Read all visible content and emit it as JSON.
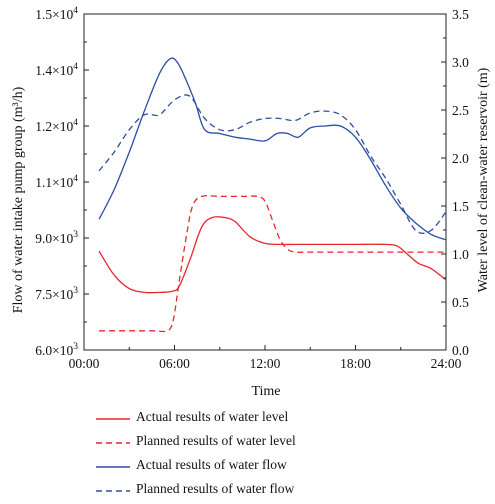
{
  "chart_data": {
    "type": "line",
    "xlabel": "Time",
    "ylabel_left": "Flow of water intake pump group (m³/h)",
    "ylabel_right": "Water level of clean-water reservoir (m)",
    "xlim": [
      0,
      24
    ],
    "ylim_left": [
      6000,
      15000
    ],
    "ylim_right": [
      0,
      3.5
    ],
    "x_ticks": [
      0,
      6,
      12,
      18,
      24
    ],
    "x_tick_labels": [
      "00:00",
      "06:00",
      "12:00",
      "18:00",
      "24:00"
    ],
    "y_left_ticks": [
      6000,
      7500,
      9000,
      10500,
      12000,
      13500,
      15000
    ],
    "y_left_tick_labels": [
      {
        "mantissa": "6.0×10",
        "exp": "3"
      },
      {
        "mantissa": "7.5×10",
        "exp": "3"
      },
      {
        "mantissa": "9.0×10",
        "exp": "3"
      },
      {
        "mantissa": "1.1×10",
        "exp": "4"
      },
      {
        "mantissa": "1.2×10",
        "exp": "4"
      },
      {
        "mantissa": "1.4×10",
        "exp": "4"
      },
      {
        "mantissa": "1.5×10",
        "exp": "4"
      }
    ],
    "y_right_ticks": [
      0,
      0.5,
      1.0,
      1.5,
      2.0,
      2.5,
      3.0,
      3.5
    ],
    "y_right_tick_labels": [
      "0.0",
      "0.5",
      "1.0",
      "1.5",
      "2.0",
      "2.5",
      "3.0",
      "3.5"
    ],
    "grid": false,
    "legend_position": "below",
    "series": [
      {
        "name": "Actual results of water level",
        "axis": "right",
        "color": "#e8262f",
        "dash": false,
        "x": [
          1,
          2,
          3,
          4,
          5,
          5.8,
          6.3,
          7,
          7.8,
          8.5,
          9.3,
          10,
          11,
          12,
          13,
          14,
          16,
          18,
          20,
          20.8,
          21.5,
          22.2,
          23,
          24
        ],
        "y": [
          1.03,
          0.78,
          0.64,
          0.6,
          0.6,
          0.61,
          0.66,
          0.93,
          1.28,
          1.38,
          1.38,
          1.34,
          1.18,
          1.11,
          1.1,
          1.1,
          1.1,
          1.1,
          1.1,
          1.08,
          0.99,
          0.9,
          0.85,
          0.73
        ]
      },
      {
        "name": "Planned results of water level",
        "axis": "right",
        "color": "#e8262f",
        "dash": true,
        "x": [
          1,
          3,
          4.5,
          5.5,
          5.9,
          6.3,
          6.8,
          7.2,
          7.8,
          9,
          10.5,
          11.5,
          12,
          12.5,
          13,
          13.5,
          14,
          15,
          18,
          21,
          24
        ],
        "y": [
          0.2,
          0.2,
          0.2,
          0.2,
          0.3,
          0.7,
          1.2,
          1.5,
          1.6,
          1.6,
          1.6,
          1.6,
          1.55,
          1.35,
          1.15,
          1.05,
          1.02,
          1.02,
          1.02,
          1.02,
          1.02
        ]
      },
      {
        "name": "Actual results of water flow",
        "axis": "left",
        "color": "#2b4ea3",
        "dash": false,
        "x": [
          1,
          2,
          3,
          4,
          5,
          5.7,
          6.2,
          6.8,
          7.4,
          8,
          9,
          10,
          11,
          12,
          12.8,
          13.5,
          14.2,
          15,
          16,
          17,
          18,
          19,
          20,
          21,
          22,
          23,
          24
        ],
        "y": [
          9500,
          10300,
          11300,
          12400,
          13400,
          13800,
          13700,
          13200,
          12600,
          11900,
          11800,
          11700,
          11650,
          11600,
          11800,
          11800,
          11700,
          11950,
          12000,
          12000,
          11700,
          11100,
          10400,
          9800,
          9400,
          9100,
          8950
        ]
      },
      {
        "name": "Planned results of water flow",
        "axis": "left",
        "color": "#2b4ea3",
        "dash": true,
        "x": [
          1,
          2,
          3,
          4,
          5,
          6,
          7,
          8,
          9,
          10,
          11,
          12,
          13,
          14,
          15,
          16,
          17,
          18,
          19,
          20,
          21,
          22,
          23,
          24
        ],
        "y": [
          10800,
          11300,
          11900,
          12300,
          12300,
          12700,
          12800,
          12200,
          11900,
          11900,
          12100,
          12200,
          12200,
          12150,
          12350,
          12400,
          12300,
          11900,
          11200,
          10600,
          9900,
          9200,
          9200,
          9700
        ]
      }
    ]
  }
}
